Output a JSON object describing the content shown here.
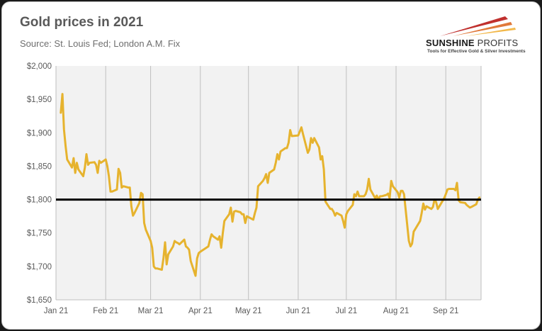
{
  "header": {
    "title": "Gold prices in 2021",
    "subtitle": "Source: St. Louis Fed; London A.M. Fix"
  },
  "logo": {
    "name_bold": "SUNSHINE",
    "name_rest": " PROFITS",
    "tagline": "Tools for Effective Gold & Silver Investments",
    "colors": [
      "#c0302e",
      "#e0793a",
      "#f2b84a"
    ]
  },
  "colors": {
    "line": "#e6b32e",
    "reference": "#000000",
    "plot_bg": "#f2f2f2",
    "grid": "#bfbfbf"
  },
  "chart_data": {
    "type": "line",
    "title": "Gold prices in 2021",
    "subtitle": "Source: St. Louis Fed; London A.M. Fix",
    "xlabel": "",
    "ylabel": "",
    "xlim": [
      "2021-01-01",
      "2021-09-23"
    ],
    "ylim": [
      1650,
      2000
    ],
    "x_ticks": [
      "2021-01-01",
      "2021-02-01",
      "2021-03-01",
      "2021-04-01",
      "2021-05-01",
      "2021-06-01",
      "2021-07-01",
      "2021-08-01",
      "2021-09-01"
    ],
    "x_tick_labels": [
      "Jan 21",
      "Feb 21",
      "Mar 21",
      "Apr 21",
      "May 21",
      "Jun 21",
      "Jul 21",
      "Aug 21",
      "Sep 21"
    ],
    "y_ticks": [
      1650,
      1700,
      1750,
      1800,
      1850,
      1900,
      1950,
      2000
    ],
    "y_tick_labels": [
      "$1,650",
      "$1,700",
      "$1,750",
      "$1,800",
      "$1,850",
      "$1,900",
      "$1,950",
      "$2,000"
    ],
    "grid": "vertical",
    "reference_line": 1800,
    "series": [
      {
        "x": [
          "2021-01-04",
          "2021-01-05",
          "2021-01-06",
          "2021-01-07",
          "2021-01-08",
          "2021-01-11",
          "2021-01-12",
          "2021-01-13",
          "2021-01-14",
          "2021-01-15",
          "2021-01-18",
          "2021-01-19",
          "2021-01-20",
          "2021-01-21",
          "2021-01-22",
          "2021-01-25",
          "2021-01-26",
          "2021-01-27",
          "2021-01-28",
          "2021-01-29",
          "2021-02-01",
          "2021-02-02",
          "2021-02-03",
          "2021-02-04",
          "2021-02-05",
          "2021-02-08",
          "2021-02-09",
          "2021-02-10",
          "2021-02-11",
          "2021-02-12",
          "2021-02-15",
          "2021-02-16",
          "2021-02-17",
          "2021-02-18",
          "2021-02-19",
          "2021-02-22",
          "2021-02-23",
          "2021-02-24",
          "2021-02-25",
          "2021-02-26",
          "2021-03-01",
          "2021-03-02",
          "2021-03-03",
          "2021-03-04",
          "2021-03-05",
          "2021-03-08",
          "2021-03-09",
          "2021-03-10",
          "2021-03-11",
          "2021-03-12",
          "2021-03-15",
          "2021-03-16",
          "2021-03-17",
          "2021-03-18",
          "2021-03-19",
          "2021-03-22",
          "2021-03-23",
          "2021-03-24",
          "2021-03-25",
          "2021-03-26",
          "2021-03-29",
          "2021-03-30",
          "2021-03-31",
          "2021-04-01",
          "2021-04-06",
          "2021-04-07",
          "2021-04-08",
          "2021-04-09",
          "2021-04-12",
          "2021-04-13",
          "2021-04-14",
          "2021-04-15",
          "2021-04-16",
          "2021-04-19",
          "2021-04-20",
          "2021-04-21",
          "2021-04-22",
          "2021-04-23",
          "2021-04-26",
          "2021-04-27",
          "2021-04-28",
          "2021-04-29",
          "2021-04-30",
          "2021-05-04",
          "2021-05-05",
          "2021-05-06",
          "2021-05-07",
          "2021-05-10",
          "2021-05-11",
          "2021-05-12",
          "2021-05-13",
          "2021-05-14",
          "2021-05-17",
          "2021-05-18",
          "2021-05-19",
          "2021-05-20",
          "2021-05-21",
          "2021-05-24",
          "2021-05-25",
          "2021-05-26",
          "2021-05-27",
          "2021-05-28",
          "2021-06-01",
          "2021-06-02",
          "2021-06-03",
          "2021-06-04",
          "2021-06-07",
          "2021-06-08",
          "2021-06-09",
          "2021-06-10",
          "2021-06-11",
          "2021-06-14",
          "2021-06-15",
          "2021-06-16",
          "2021-06-17",
          "2021-06-18",
          "2021-06-21",
          "2021-06-22",
          "2021-06-23",
          "2021-06-24",
          "2021-06-25",
          "2021-06-28",
          "2021-06-29",
          "2021-06-30",
          "2021-07-01",
          "2021-07-02",
          "2021-07-05",
          "2021-07-06",
          "2021-07-07",
          "2021-07-08",
          "2021-07-09",
          "2021-07-12",
          "2021-07-13",
          "2021-07-14",
          "2021-07-15",
          "2021-07-16",
          "2021-07-19",
          "2021-07-20",
          "2021-07-21",
          "2021-07-22",
          "2021-07-23",
          "2021-07-26",
          "2021-07-27",
          "2021-07-28",
          "2021-07-29",
          "2021-07-30",
          "2021-08-02",
          "2021-08-03",
          "2021-08-04",
          "2021-08-05",
          "2021-08-06",
          "2021-08-09",
          "2021-08-10",
          "2021-08-11",
          "2021-08-12",
          "2021-08-13",
          "2021-08-16",
          "2021-08-17",
          "2021-08-18",
          "2021-08-19",
          "2021-08-20",
          "2021-08-23",
          "2021-08-24",
          "2021-08-25",
          "2021-08-26",
          "2021-08-27",
          "2021-08-31",
          "2021-09-01",
          "2021-09-02",
          "2021-09-03",
          "2021-09-06",
          "2021-09-07",
          "2021-09-08",
          "2021-09-09",
          "2021-09-10",
          "2021-09-13",
          "2021-09-14",
          "2021-09-15",
          "2021-09-16",
          "2021-09-17",
          "2021-09-20",
          "2021-09-21",
          "2021-09-22"
        ],
        "y": [
          1930,
          1958,
          1905,
          1880,
          1860,
          1848,
          1862,
          1840,
          1855,
          1845,
          1835,
          1848,
          1868,
          1852,
          1855,
          1856,
          1852,
          1840,
          1858,
          1855,
          1860,
          1850,
          1835,
          1812,
          1812,
          1815,
          1846,
          1840,
          1818,
          1820,
          1818,
          1818,
          1790,
          1776,
          1780,
          1795,
          1810,
          1808,
          1765,
          1755,
          1738,
          1728,
          1700,
          1697,
          1697,
          1695,
          1712,
          1736,
          1703,
          1718,
          1730,
          1738,
          1736,
          1735,
          1733,
          1740,
          1730,
          1728,
          1725,
          1708,
          1686,
          1712,
          1720,
          1722,
          1730,
          1740,
          1748,
          1745,
          1740,
          1745,
          1728,
          1750,
          1768,
          1778,
          1788,
          1767,
          1782,
          1783,
          1781,
          1778,
          1778,
          1765,
          1775,
          1770,
          1780,
          1788,
          1820,
          1828,
          1832,
          1838,
          1825,
          1840,
          1845,
          1855,
          1868,
          1860,
          1872,
          1877,
          1877,
          1885,
          1904,
          1895,
          1896,
          1902,
          1908,
          1898,
          1870,
          1875,
          1892,
          1885,
          1892,
          1878,
          1860,
          1865,
          1845,
          1797,
          1786,
          1786,
          1782,
          1776,
          1780,
          1776,
          1768,
          1758,
          1778,
          1783,
          1792,
          1808,
          1805,
          1812,
          1805,
          1805,
          1808,
          1815,
          1831,
          1815,
          1802,
          1806,
          1800,
          1805,
          1805,
          1807,
          1809,
          1802,
          1828,
          1820,
          1811,
          1803,
          1813,
          1813,
          1808,
          1738,
          1730,
          1734,
          1752,
          1756,
          1768,
          1780,
          1794,
          1785,
          1790,
          1786,
          1789,
          1800,
          1796,
          1786,
          1802,
          1808,
          1815,
          1816,
          1816,
          1814,
          1825,
          1799,
          1796,
          1795,
          1792,
          1790,
          1788,
          1789,
          1793,
          1800,
          1803
        ]
      }
    ]
  }
}
